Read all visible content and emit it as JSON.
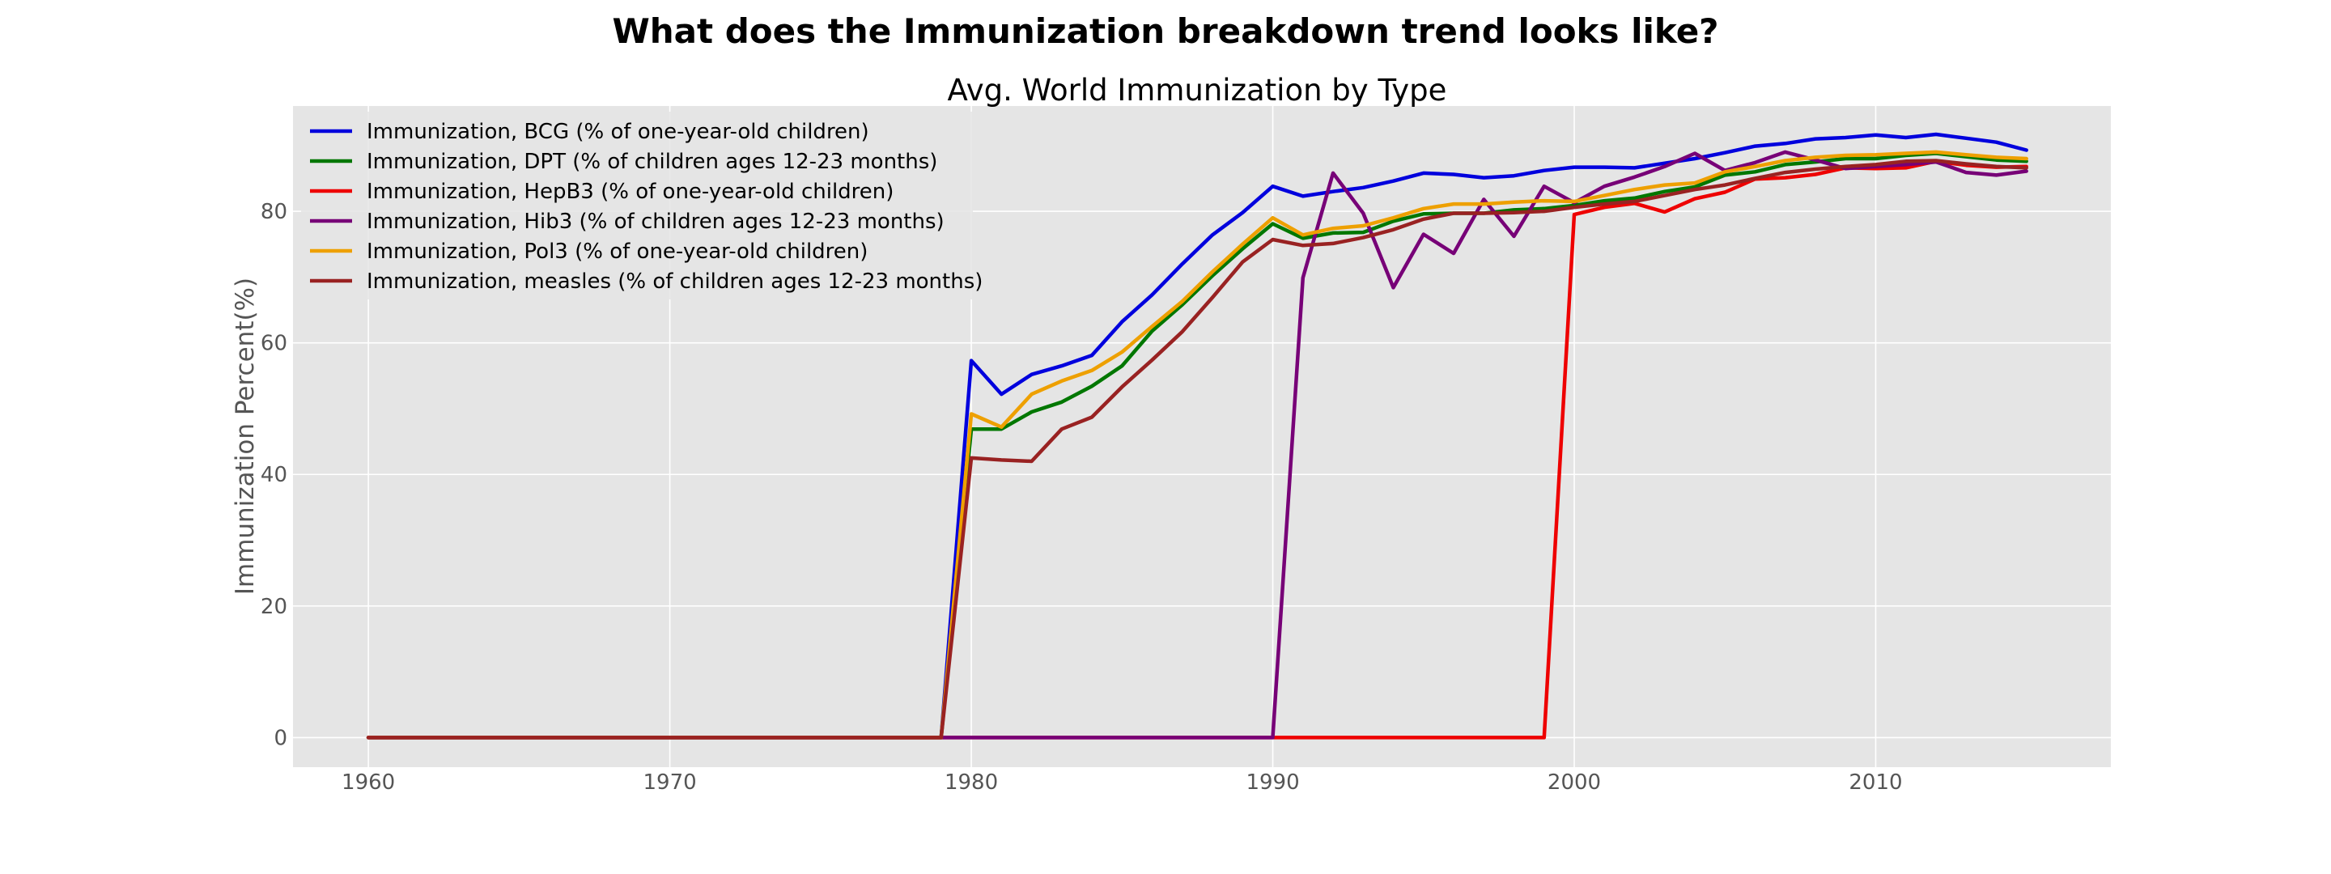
{
  "chart_data": {
    "type": "line",
    "suptitle": "What does the Immunization breakdown trend looks like?",
    "title": "Avg. World Immunization by Type",
    "xlabel": "",
    "ylabel": "Immunization Percent(%)",
    "xlim": [
      1957.5,
      2017.8
    ],
    "ylim": [
      -4.5,
      96
    ],
    "xticks": [
      1960,
      1970,
      1980,
      1990,
      2000,
      2010
    ],
    "yticks": [
      0,
      20,
      40,
      60,
      80
    ],
    "grid": true,
    "legend_position": "top-left",
    "x": [
      1960,
      1961,
      1962,
      1963,
      1964,
      1965,
      1966,
      1967,
      1968,
      1969,
      1970,
      1971,
      1972,
      1973,
      1974,
      1975,
      1976,
      1977,
      1978,
      1979,
      1980,
      1981,
      1982,
      1983,
      1984,
      1985,
      1986,
      1987,
      1988,
      1989,
      1990,
      1991,
      1992,
      1993,
      1994,
      1995,
      1996,
      1997,
      1998,
      1999,
      2000,
      2001,
      2002,
      2003,
      2004,
      2005,
      2006,
      2007,
      2008,
      2009,
      2010,
      2011,
      2012,
      2013,
      2014,
      2015
    ],
    "series": [
      {
        "name": "Immunization, BCG (% of one-year-old children)",
        "color": "#0000dd",
        "values": [
          0,
          0,
          0,
          0,
          0,
          0,
          0,
          0,
          0,
          0,
          0,
          0,
          0,
          0,
          0,
          0,
          0,
          0,
          0,
          0,
          57.3,
          52.2,
          55.2,
          56.5,
          58.1,
          63.2,
          67.3,
          72.0,
          76.4,
          79.8,
          83.8,
          82.3,
          83.0,
          83.6,
          84.6,
          85.8,
          85.6,
          85.1,
          85.4,
          86.2,
          86.7,
          86.7,
          86.6,
          87.3,
          88.0,
          88.9,
          89.9,
          90.3,
          91.0,
          91.2,
          91.6,
          91.2,
          91.7,
          91.1,
          90.5,
          89.3
        ]
      },
      {
        "name": "Immunization, DPT (% of children ages 12-23 months)",
        "color": "#007700",
        "values": [
          0,
          0,
          0,
          0,
          0,
          0,
          0,
          0,
          0,
          0,
          0,
          0,
          0,
          0,
          0,
          0,
          0,
          0,
          0,
          0,
          46.9,
          46.9,
          49.5,
          51.0,
          53.4,
          56.5,
          61.8,
          65.8,
          70.2,
          74.3,
          78.1,
          75.9,
          76.7,
          76.8,
          78.5,
          79.6,
          79.7,
          79.7,
          80.2,
          80.4,
          80.9,
          81.6,
          82.0,
          83.0,
          83.7,
          85.5,
          86.0,
          87.1,
          87.5,
          88.0,
          88.0,
          88.5,
          88.8,
          88.3,
          87.8,
          87.6
        ]
      },
      {
        "name": "Immunization, HepB3 (% of one-year-old children)",
        "color": "#ee0000",
        "values": [
          0,
          0,
          0,
          0,
          0,
          0,
          0,
          0,
          0,
          0,
          0,
          0,
          0,
          0,
          0,
          0,
          0,
          0,
          0,
          0,
          0,
          0,
          0,
          0,
          0,
          0,
          0,
          0,
          0,
          0,
          0,
          0,
          0,
          0,
          0,
          0,
          0,
          0,
          0,
          0,
          79.5,
          80.6,
          81.2,
          79.9,
          81.9,
          82.9,
          84.9,
          85.1,
          85.6,
          86.6,
          86.5,
          86.6,
          87.6,
          87.0,
          86.7,
          86.8
        ]
      },
      {
        "name": "Immunization, Hib3 (% of children ages 12-23 months)",
        "color": "#770077",
        "values": [
          0,
          0,
          0,
          0,
          0,
          0,
          0,
          0,
          0,
          0,
          0,
          0,
          0,
          0,
          0,
          0,
          0,
          0,
          0,
          0,
          0,
          0,
          0,
          0,
          0,
          0,
          0,
          0,
          0,
          0,
          0,
          69.9,
          85.8,
          79.7,
          68.4,
          76.5,
          73.6,
          81.8,
          76.2,
          83.8,
          81.3,
          83.8,
          85.2,
          86.8,
          88.8,
          86.2,
          87.4,
          89.0,
          87.8,
          86.5,
          86.8,
          87.1,
          87.5,
          85.9,
          85.5,
          86.1
        ]
      },
      {
        "name": "Immunization, Pol3 (% of one-year-old children)",
        "color": "#eea000",
        "values": [
          0,
          0,
          0,
          0,
          0,
          0,
          0,
          0,
          0,
          0,
          0,
          0,
          0,
          0,
          0,
          0,
          0,
          0,
          0,
          0,
          49.2,
          47.2,
          52.2,
          54.2,
          55.8,
          58.6,
          62.5,
          66.3,
          70.8,
          75.0,
          79.0,
          76.4,
          77.4,
          77.8,
          79.0,
          80.4,
          81.1,
          81.1,
          81.4,
          81.6,
          81.5,
          82.4,
          83.3,
          84.0,
          84.3,
          86.0,
          86.8,
          87.7,
          88.2,
          88.5,
          88.6,
          88.8,
          89.0,
          88.6,
          88.2,
          88.0
        ]
      },
      {
        "name": "Immunization, measles (% of children ages 12-23 months)",
        "color": "#992222",
        "values": [
          0,
          0,
          0,
          0,
          0,
          0,
          0,
          0,
          0,
          0,
          0,
          0,
          0,
          0,
          0,
          0,
          0,
          0,
          0,
          0,
          42.5,
          42.2,
          42.0,
          46.9,
          48.7,
          53.3,
          57.4,
          61.7,
          66.9,
          72.3,
          75.7,
          74.8,
          75.1,
          76.0,
          77.2,
          78.8,
          79.7,
          79.7,
          79.8,
          80.0,
          80.6,
          81.1,
          81.5,
          82.4,
          83.3,
          84.0,
          85.0,
          85.9,
          86.4,
          86.8,
          87.1,
          87.6,
          87.7,
          87.2,
          86.8,
          86.6
        ]
      }
    ]
  }
}
